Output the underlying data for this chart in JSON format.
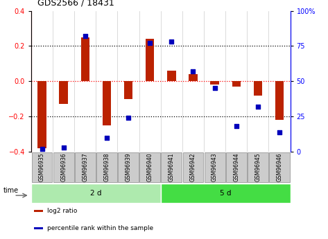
{
  "title": "GDS2566 / 18431",
  "samples": [
    "GSM96935",
    "GSM96936",
    "GSM96937",
    "GSM96938",
    "GSM96939",
    "GSM96940",
    "GSM96941",
    "GSM96942",
    "GSM96943",
    "GSM96944",
    "GSM96945",
    "GSM96946"
  ],
  "log2_ratio": [
    -0.38,
    -0.13,
    0.25,
    -0.25,
    -0.1,
    0.24,
    0.06,
    0.04,
    -0.02,
    -0.03,
    -0.08,
    -0.22
  ],
  "percentile_rank": [
    2,
    3,
    82,
    10,
    24,
    77,
    78,
    57,
    45,
    18,
    32,
    14
  ],
  "groups": [
    {
      "label": "2 d",
      "start": 0,
      "end": 6,
      "color": "#AEEAAE"
    },
    {
      "label": "5 d",
      "start": 6,
      "end": 12,
      "color": "#44DD44"
    }
  ],
  "bar_color": "#BB2200",
  "dot_color": "#0000BB",
  "ylim_left": [
    -0.4,
    0.4
  ],
  "ylim_right": [
    0,
    100
  ],
  "yticks_left": [
    -0.4,
    -0.2,
    0.0,
    0.2,
    0.4
  ],
  "yticks_right": [
    0,
    25,
    50,
    75,
    100
  ],
  "dotted_lines_black": [
    -0.2,
    0.2
  ],
  "dotted_line_red": 0.0,
  "bg_color": "#FFFFFF",
  "time_label": "time",
  "legend_items": [
    {
      "label": "log2 ratio",
      "color": "#BB2200"
    },
    {
      "label": "percentile rank within the sample",
      "color": "#0000BB"
    }
  ],
  "bar_width": 0.4,
  "label_bg": "#CCCCCC",
  "label_fontsize": 5.5,
  "title_fontsize": 9
}
